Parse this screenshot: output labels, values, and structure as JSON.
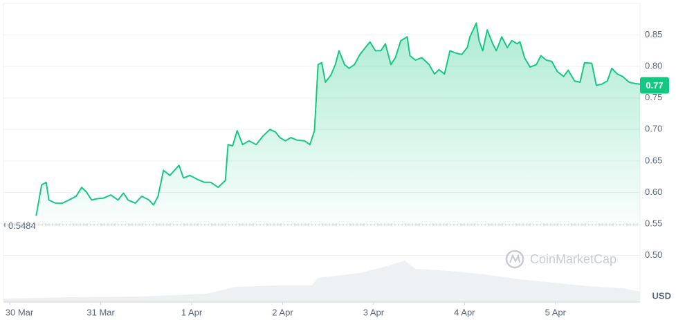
{
  "chart_data": {
    "type": "line",
    "color": "#16c784",
    "x": [
      0.29,
      0.35,
      0.4,
      0.43,
      0.5,
      0.58,
      0.65,
      0.73,
      0.79,
      0.84,
      0.9,
      0.96,
      1.03,
      1.11,
      1.19,
      1.25,
      1.3,
      1.38,
      1.45,
      1.53,
      1.58,
      1.63,
      1.69,
      1.76,
      1.86,
      1.91,
      1.98,
      2.06,
      2.14,
      2.21,
      2.29,
      2.37,
      2.4,
      2.45,
      2.5,
      2.56,
      2.63,
      2.71,
      2.78,
      2.86,
      2.92,
      2.97,
      3.03,
      3.09,
      3.16,
      3.24,
      3.3,
      3.35,
      3.39,
      3.43,
      3.47,
      3.53,
      3.58,
      3.62,
      3.68,
      3.73,
      3.79,
      3.85,
      3.91,
      3.96,
      4.02,
      4.08,
      4.13,
      4.19,
      4.24,
      4.3,
      4.37,
      4.4,
      4.46,
      4.53,
      4.61,
      4.67,
      4.72,
      4.78,
      4.84,
      4.91,
      4.97,
      5.03,
      5.06,
      5.13,
      5.16,
      5.2,
      5.25,
      5.31,
      5.35,
      5.41,
      5.47,
      5.52,
      5.58,
      5.61,
      5.66,
      5.72,
      5.79,
      5.84,
      5.9,
      5.96,
      6.02,
      6.09,
      6.14,
      6.21,
      6.27,
      6.32,
      6.4,
      6.45,
      6.51,
      6.57,
      6.62,
      6.68,
      6.74,
      6.81,
      6.87,
      6.93
    ],
    "values": [
      0.563,
      0.612,
      0.616,
      0.588,
      0.583,
      0.583,
      0.588,
      0.594,
      0.608,
      0.601,
      0.588,
      0.59,
      0.591,
      0.596,
      0.588,
      0.599,
      0.588,
      0.583,
      0.594,
      0.588,
      0.58,
      0.594,
      0.635,
      0.627,
      0.643,
      0.623,
      0.627,
      0.621,
      0.616,
      0.616,
      0.608,
      0.619,
      0.676,
      0.674,
      0.698,
      0.676,
      0.682,
      0.676,
      0.689,
      0.7,
      0.696,
      0.687,
      0.682,
      0.687,
      0.683,
      0.682,
      0.676,
      0.698,
      0.803,
      0.806,
      0.775,
      0.786,
      0.803,
      0.825,
      0.803,
      0.797,
      0.803,
      0.819,
      0.83,
      0.839,
      0.825,
      0.825,
      0.836,
      0.803,
      0.814,
      0.841,
      0.847,
      0.817,
      0.81,
      0.814,
      0.803,
      0.788,
      0.795,
      0.788,
      0.825,
      0.821,
      0.819,
      0.83,
      0.847,
      0.869,
      0.841,
      0.825,
      0.858,
      0.836,
      0.825,
      0.847,
      0.83,
      0.841,
      0.836,
      0.839,
      0.814,
      0.799,
      0.803,
      0.817,
      0.81,
      0.808,
      0.792,
      0.784,
      0.794,
      0.777,
      0.775,
      0.806,
      0.805,
      0.77,
      0.772,
      0.777,
      0.797,
      0.788,
      0.784,
      0.775,
      0.773,
      0.772
    ],
    "xlim": [
      -0.07,
      6.93
    ],
    "ylim": [
      0.426,
      0.9
    ],
    "xticks": [
      {
        "value": 0,
        "label": "30 Mar"
      },
      {
        "value": 1,
        "label": "31 Mar"
      },
      {
        "value": 2,
        "label": "1 Apr"
      },
      {
        "value": 3,
        "label": "2 Apr"
      },
      {
        "value": 4,
        "label": "3 Apr"
      },
      {
        "value": 5,
        "label": "4 Apr"
      },
      {
        "value": 6,
        "label": "5 Apr"
      }
    ],
    "yticks": [
      {
        "value": 0.5,
        "label": "0.50"
      },
      0.55,
      {
        "value": 0.6,
        "label": "0.60"
      },
      0.65,
      {
        "value": 0.7,
        "label": "0.70"
      },
      0.75,
      {
        "value": 0.8,
        "label": "0.80"
      },
      0.85
    ],
    "grid": true,
    "last_price": 0.77,
    "open_price": 0.5484,
    "currency": "USD",
    "watermark": "CoinMarketCap",
    "volume": {
      "color": "#eef1f4",
      "ylim": [
        0,
        100
      ],
      "x": [
        -0.07,
        0.65,
        1.41,
        2.17,
        2.48,
        2.94,
        3.32,
        3.39,
        3.85,
        4.15,
        4.34,
        4.46,
        4.84,
        5.22,
        5.6,
        5.98,
        6.36,
        6.74,
        6.93
      ],
      "values": [
        5,
        7,
        8,
        12,
        22,
        24,
        24,
        35,
        42,
        52,
        60,
        48,
        45,
        40,
        33,
        28,
        23,
        20,
        15
      ]
    }
  }
}
